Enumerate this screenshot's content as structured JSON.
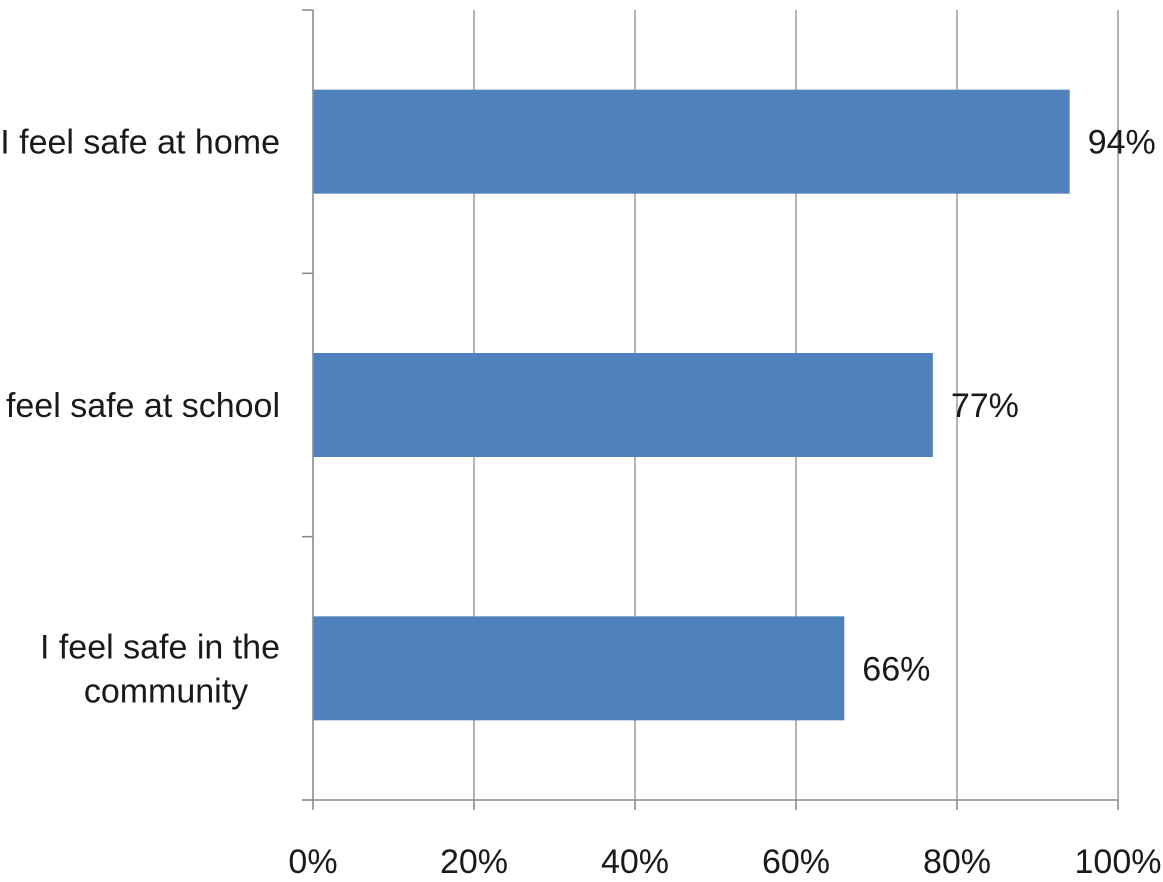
{
  "chart_data": {
    "type": "bar",
    "orientation": "horizontal",
    "categories": [
      [
        "I feel safe at home"
      ],
      [
        "I feel safe at school"
      ],
      [
        "I feel safe in the",
        "community"
      ]
    ],
    "values": [
      94,
      77,
      66
    ],
    "data_labels": [
      "94%",
      "77%",
      "66%"
    ],
    "xlim": [
      0,
      100
    ],
    "x_ticks": [
      0,
      20,
      40,
      60,
      80,
      100
    ],
    "x_tick_labels": [
      "0%",
      "20%",
      "40%",
      "60%",
      "80%",
      "100%"
    ],
    "grid": true,
    "legend": "none",
    "bar_color": "#4f81bd"
  }
}
